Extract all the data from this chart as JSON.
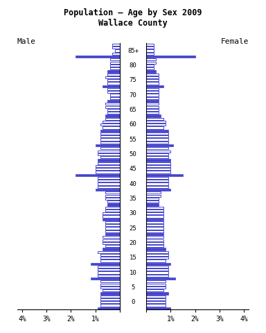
{
  "title": "Population — Age by Sex 2009\nWallace County",
  "male_label": "Male",
  "female_label": "Female",
  "age_group_labels": [
    "85+",
    "80",
    "75",
    "70",
    "65",
    "60",
    "55",
    "50",
    "45",
    "40",
    "35",
    "30",
    "25",
    "20",
    "15",
    "10",
    "5",
    "0"
  ],
  "bar_color_solid": "#4444cc",
  "bar_color_outline": "#aaaaee",
  "xlim": 4.2,
  "background": "#ffffff",
  "male_data": [
    [
      1.8,
      0.3,
      0.2,
      0.3,
      0.3
    ],
    [
      0.5,
      0.4,
      0.4,
      0.4,
      0.4
    ],
    [
      0.7,
      0.5,
      0.5,
      0.6,
      0.5
    ],
    [
      0.5,
      0.4,
      0.4,
      0.5,
      0.5
    ],
    [
      0.6,
      0.5,
      0.5,
      0.6,
      0.6
    ],
    [
      0.8,
      0.7,
      0.8,
      0.7,
      0.6
    ],
    [
      1.0,
      0.8,
      0.8,
      0.8,
      0.8
    ],
    [
      0.9,
      0.8,
      0.9,
      0.9,
      0.8
    ],
    [
      1.8,
      1.0,
      1.0,
      1.0,
      0.9
    ],
    [
      1.0,
      0.9,
      0.9,
      0.9,
      0.9
    ],
    [
      0.5,
      0.5,
      0.6,
      0.6,
      0.6
    ],
    [
      0.7,
      0.7,
      0.7,
      0.6,
      0.6
    ],
    [
      0.6,
      0.6,
      0.6,
      0.6,
      0.6
    ],
    [
      0.7,
      0.6,
      0.7,
      0.7,
      0.7
    ],
    [
      1.2,
      0.8,
      0.8,
      0.8,
      0.9
    ],
    [
      1.2,
      0.9,
      0.9,
      0.9,
      0.9
    ],
    [
      0.8,
      0.7,
      0.8,
      0.8,
      0.8
    ],
    [
      0.9,
      0.8,
      0.8,
      0.8,
      0.8
    ]
  ],
  "female_data": [
    [
      2.0,
      0.3,
      0.3,
      0.3,
      0.3
    ],
    [
      0.4,
      0.3,
      0.3,
      0.4,
      0.4
    ],
    [
      0.7,
      0.5,
      0.5,
      0.5,
      0.5
    ],
    [
      0.5,
      0.5,
      0.5,
      0.5,
      0.5
    ],
    [
      0.6,
      0.5,
      0.5,
      0.5,
      0.5
    ],
    [
      0.9,
      0.7,
      0.8,
      0.8,
      0.7
    ],
    [
      1.1,
      0.9,
      0.9,
      0.9,
      0.9
    ],
    [
      1.0,
      0.9,
      0.9,
      1.0,
      0.9
    ],
    [
      1.5,
      1.0,
      1.0,
      1.0,
      1.0
    ],
    [
      1.0,
      0.9,
      0.9,
      0.9,
      0.9
    ],
    [
      0.5,
      0.5,
      0.5,
      0.6,
      0.6
    ],
    [
      0.7,
      0.7,
      0.7,
      0.7,
      0.7
    ],
    [
      0.7,
      0.7,
      0.7,
      0.7,
      0.7
    ],
    [
      0.8,
      0.7,
      0.7,
      0.7,
      0.7
    ],
    [
      1.0,
      0.8,
      0.9,
      0.9,
      0.9
    ],
    [
      1.2,
      0.9,
      0.9,
      0.9,
      0.9
    ],
    [
      0.9,
      0.7,
      0.8,
      0.8,
      0.8
    ],
    [
      1.0,
      0.8,
      0.8,
      0.8,
      0.8
    ]
  ]
}
